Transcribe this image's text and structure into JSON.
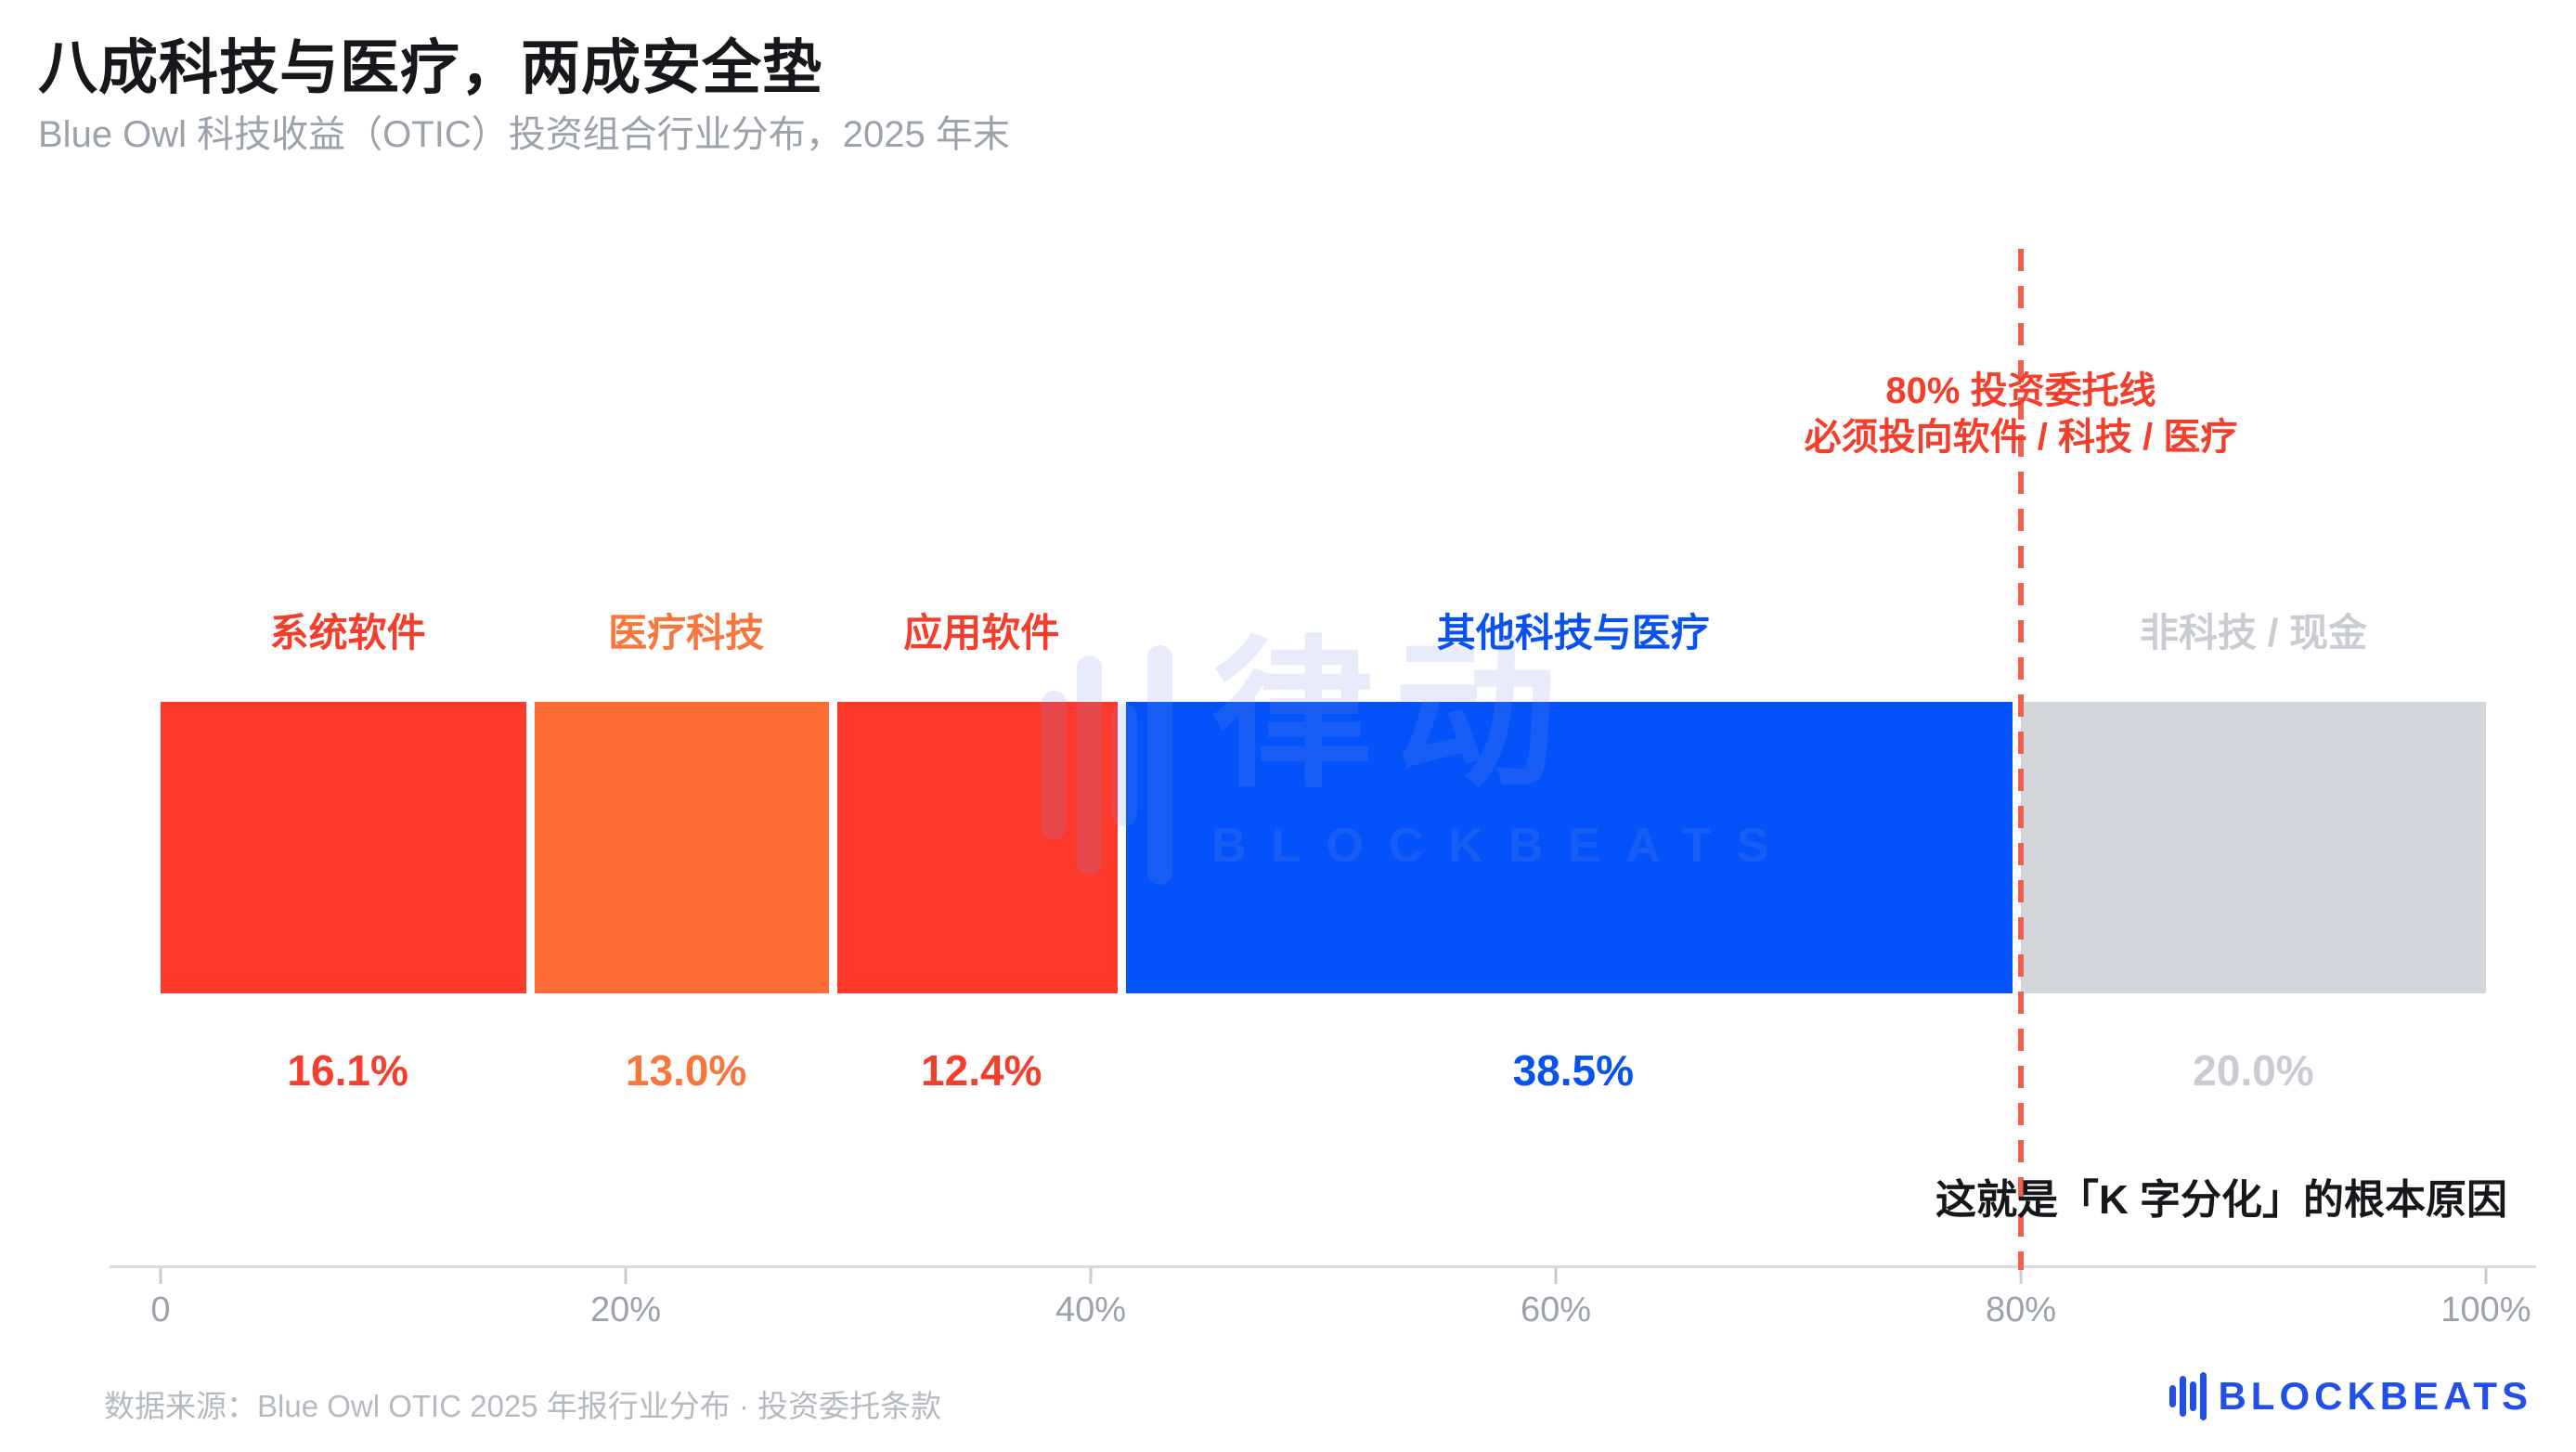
{
  "header": {
    "title": "八成科技与医疗，两成安全垫",
    "subtitle": "Blue Owl 科技收益（OTIC）投资组合行业分布，2025 年末"
  },
  "chart_data": {
    "type": "bar",
    "orientation": "horizontal-stacked",
    "title": "八成科技与医疗，两成安全垫",
    "subtitle": "Blue Owl 科技收益（OTIC）投资组合行业分布，2025 年末",
    "categories": [
      "系统软件",
      "医疗科技",
      "应用软件",
      "其他科技与医疗",
      "非科技 / 现金"
    ],
    "values": [
      16.1,
      13.0,
      12.4,
      38.5,
      20.0
    ],
    "value_labels": [
      "16.1%",
      "13.0%",
      "12.4%",
      "38.5%",
      "20.0%"
    ],
    "segment_colors": [
      "#FD392C",
      "#FD6C34",
      "#FD392C",
      "#0453FA",
      "#D3D6DB"
    ],
    "label_colors": [
      "#F43E2C",
      "#F7763B",
      "#F43E2C",
      "#0A52F0",
      "#C9CDD3"
    ],
    "xlim": [
      0,
      100
    ],
    "grid": false,
    "x_ticks": [
      {
        "value": 0,
        "label": "0"
      },
      {
        "value": 20,
        "label": "20%"
      },
      {
        "value": 40,
        "label": "40%"
      },
      {
        "value": 60,
        "label": "60%"
      },
      {
        "value": 80,
        "label": "80%"
      },
      {
        "value": 100,
        "label": "100%"
      }
    ],
    "threshold_line": {
      "value": 80,
      "style": "dashed",
      "color": "#F1604E",
      "label_line1": "80% 投资委托线",
      "label_line2": "必须投向软件 / 科技 / 医疗"
    },
    "annotation": "这就是「K 字分化」的根本原因"
  },
  "note": "这就是「K 字分化」的根本原因",
  "watermark": {
    "cn": "律动",
    "en": "BLOCKBEATS"
  },
  "footer": {
    "source": "数据来源：Blue Owl OTIC 2025 年报行业分布 · 投资委托条款",
    "logo_text": "BLOCKBEATS"
  },
  "colors": {
    "title": "#17181C",
    "subtitle": "#9CA2AA",
    "axis_text": "#9BA2AC",
    "axis_line": "#D8DADD",
    "source_text": "#B5BAC1",
    "logo_blue": "#2150E8",
    "threshold_red": "#F1604E",
    "note_text": "#15171B"
  }
}
